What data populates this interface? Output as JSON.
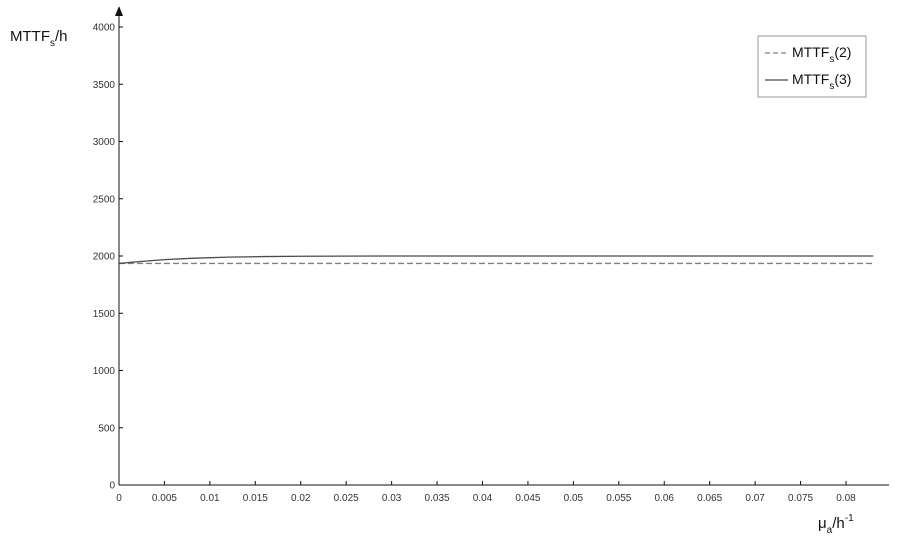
{
  "chart_data": {
    "type": "line",
    "ylabel": {
      "main": "MTTF",
      "sub": "s",
      "tail": "/h"
    },
    "xlabel": {
      "main": "μ",
      "sub": "a",
      "tail": "/h",
      "sup": "-1"
    },
    "xlim": [
      0,
      0.085
    ],
    "ylim": [
      0,
      4000
    ],
    "xticks": [
      0,
      0.005,
      0.01,
      0.015,
      0.02,
      0.025,
      0.03,
      0.035,
      0.04,
      0.045,
      0.05,
      0.055,
      0.06,
      0.065,
      0.07,
      0.075,
      0.08
    ],
    "xtick_labels": [
      "0",
      "0.005",
      "0.01",
      "0.015",
      "0.02",
      "0.025",
      "0.03",
      "0.035",
      "0.04",
      "0.045",
      "0.05",
      "0.055",
      "0.06",
      "0.065",
      "0.07",
      "0.075",
      "0.08"
    ],
    "yticks": [
      0,
      500,
      1000,
      1500,
      2000,
      2500,
      3000,
      3500,
      4000
    ],
    "ytick_labels": [
      "0",
      "500",
      "1000",
      "1500",
      "2000",
      "2500",
      "3000",
      "3500",
      "4000"
    ],
    "grid": false,
    "legend_position": "top-right",
    "series": [
      {
        "name": "MTTF(2)",
        "label": {
          "main": "MTTF",
          "sub": "s",
          "tail": "(2)"
        },
        "style": "dashed",
        "color": "#808080",
        "x": [
          0,
          0.01,
          0.02,
          0.04,
          0.06,
          0.083
        ],
        "y": [
          1935,
          1935,
          1935,
          1935,
          1935,
          1935
        ]
      },
      {
        "name": "MTTF(3)",
        "label": {
          "main": "MTTF",
          "sub": "s",
          "tail": "(3)"
        },
        "style": "solid",
        "color": "#4a4a4a",
        "x": [
          0,
          0.002,
          0.005,
          0.008,
          0.012,
          0.016,
          0.02,
          0.03,
          0.04,
          0.06,
          0.083
        ],
        "y": [
          1935,
          1950,
          1968,
          1980,
          1990,
          1995,
          1998,
          2000,
          2000,
          2000,
          2000
        ]
      }
    ]
  }
}
